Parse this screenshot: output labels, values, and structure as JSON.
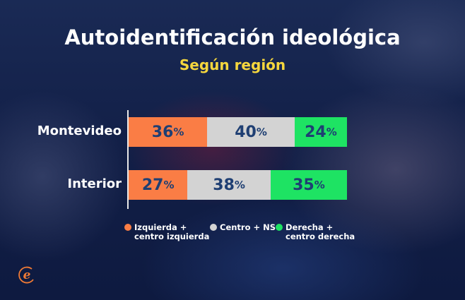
{
  "chart_data": {
    "type": "bar",
    "orientation": "horizontal-stacked",
    "title": "Autoidentificación ideológica",
    "subtitle": "Según región",
    "categories": [
      "Montevideo",
      "Interior"
    ],
    "unit": "%",
    "series": [
      {
        "name": "Izquierda + centro izquierda",
        "color": "#fa7d45",
        "values": [
          36,
          27
        ]
      },
      {
        "name": "Centro + NS",
        "color": "#d3d3d3",
        "values": [
          40,
          38
        ]
      },
      {
        "name": "Derecha + centro derecha",
        "color": "#1ee363",
        "values": [
          24,
          35
        ]
      }
    ],
    "xlim": [
      0,
      100
    ],
    "grid": false,
    "legend_placement": "bottom",
    "legend_lines": [
      [
        "Izquierda +",
        "centro izquierda"
      ],
      [
        "Centro + NS"
      ],
      [
        "Derecha +",
        "centro derecha"
      ]
    ]
  },
  "logo": {
    "icon": "e-logo-icon",
    "color": "#f07a35"
  }
}
